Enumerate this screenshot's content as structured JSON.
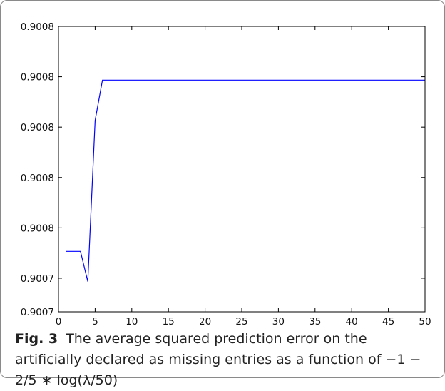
{
  "chart_data": {
    "type": "line",
    "title": "",
    "xlabel": "",
    "ylabel": "",
    "xlim": [
      0,
      50
    ],
    "ylim": [
      0.90065,
      0.90082
    ],
    "x_ticks": [
      0,
      5,
      10,
      15,
      20,
      25,
      30,
      35,
      40,
      45,
      50
    ],
    "y_ticks": [
      {
        "value": 0.90065,
        "label": "0.9007"
      },
      {
        "value": 0.90067,
        "label": "0.9007"
      },
      {
        "value": 0.9007,
        "label": "0.9008"
      },
      {
        "value": 0.90073,
        "label": "0.9008"
      },
      {
        "value": 0.90076,
        "label": "0.9008"
      },
      {
        "value": 0.90079,
        "label": "0.9008"
      },
      {
        "value": 0.90082,
        "label": "0.9008"
      }
    ],
    "grid": false,
    "line_color": "#0000ff",
    "series": [
      {
        "x": [
          1,
          2,
          3,
          4,
          5,
          6,
          7,
          8,
          9,
          10,
          11,
          12,
          13,
          14,
          15,
          16,
          17,
          18,
          19,
          20,
          21,
          22,
          23,
          24,
          25,
          26,
          27,
          28,
          29,
          30,
          31,
          32,
          33,
          34,
          35,
          36,
          37,
          38,
          39,
          40,
          41,
          42,
          43,
          44,
          45,
          46,
          47,
          48,
          49,
          50
        ],
        "y": [
          0.900686,
          0.900686,
          0.900686,
          0.900668,
          0.900764,
          0.900788,
          0.900788,
          0.900788,
          0.900788,
          0.900788,
          0.900788,
          0.900788,
          0.900788,
          0.900788,
          0.900788,
          0.900788,
          0.900788,
          0.900788,
          0.900788,
          0.900788,
          0.900788,
          0.900788,
          0.900788,
          0.900788,
          0.900788,
          0.900788,
          0.900788,
          0.900788,
          0.900788,
          0.900788,
          0.900788,
          0.900788,
          0.900788,
          0.900788,
          0.900788,
          0.900788,
          0.900788,
          0.900788,
          0.900788,
          0.900788,
          0.900788,
          0.900788,
          0.900788,
          0.900788,
          0.900788,
          0.900788,
          0.900788,
          0.900788,
          0.900788,
          0.900788
        ]
      }
    ]
  },
  "caption": {
    "label": "Fig. 3",
    "text": "The average squared prediction error on the artificially declared as missing entries as a function of −1 − 2/5 ∗ log(λ/50)"
  }
}
